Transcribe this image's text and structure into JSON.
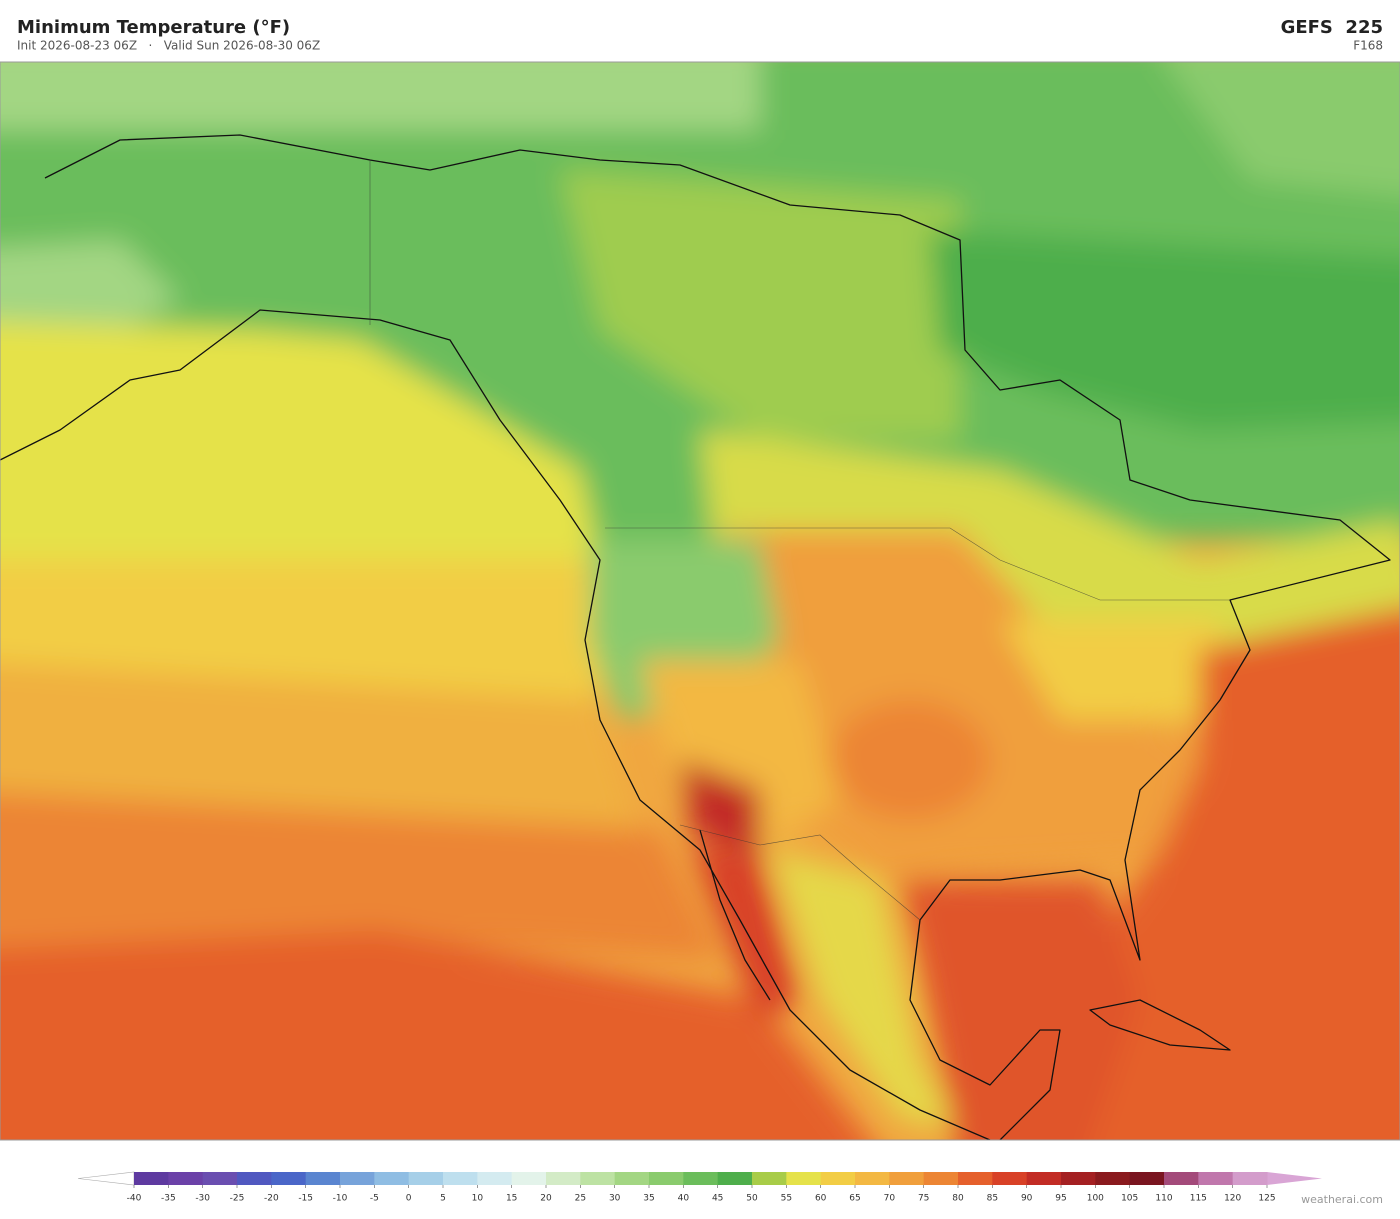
{
  "header": {
    "title": "Minimum Temperature  (°F)",
    "subtitle": "Init 2026-08-23 06Z   ·   Valid Sun 2026-08-30 06Z",
    "model": "GEFS  225",
    "forecast_hour": "F168"
  },
  "colorbar": {
    "ticks": [
      -40,
      -35,
      -30,
      -25,
      -20,
      -15,
      -10,
      -5,
      0,
      5,
      10,
      15,
      20,
      25,
      30,
      35,
      40,
      45,
      50,
      55,
      60,
      65,
      70,
      75,
      80,
      85,
      90,
      95,
      100,
      105,
      110,
      115,
      120,
      125
    ],
    "colors": [
      "#5e3aa0",
      "#6b41a8",
      "#6a4eb0",
      "#5058c0",
      "#4a66c8",
      "#5a85d0",
      "#77a3da",
      "#8fbde3",
      "#a6cfe8",
      "#bedfee",
      "#d4ebf0",
      "#e3f3ea",
      "#d3ebc6",
      "#bde2a3",
      "#a3d683",
      "#8acb6d",
      "#6bbd5b",
      "#4eae4b",
      "#a8cc48",
      "#e5e24a",
      "#f2cd45",
      "#f3b843",
      "#f09f3c",
      "#ec8534",
      "#e5602c",
      "#d84127",
      "#c22c25",
      "#a42022",
      "#8a1a1e",
      "#7a1520",
      "#a34a7a",
      "#c077ac",
      "#d39ccb"
    ],
    "under_color": "#ffffff",
    "over_color": "#d9a5d5"
  },
  "credit": "weatherai.com"
}
